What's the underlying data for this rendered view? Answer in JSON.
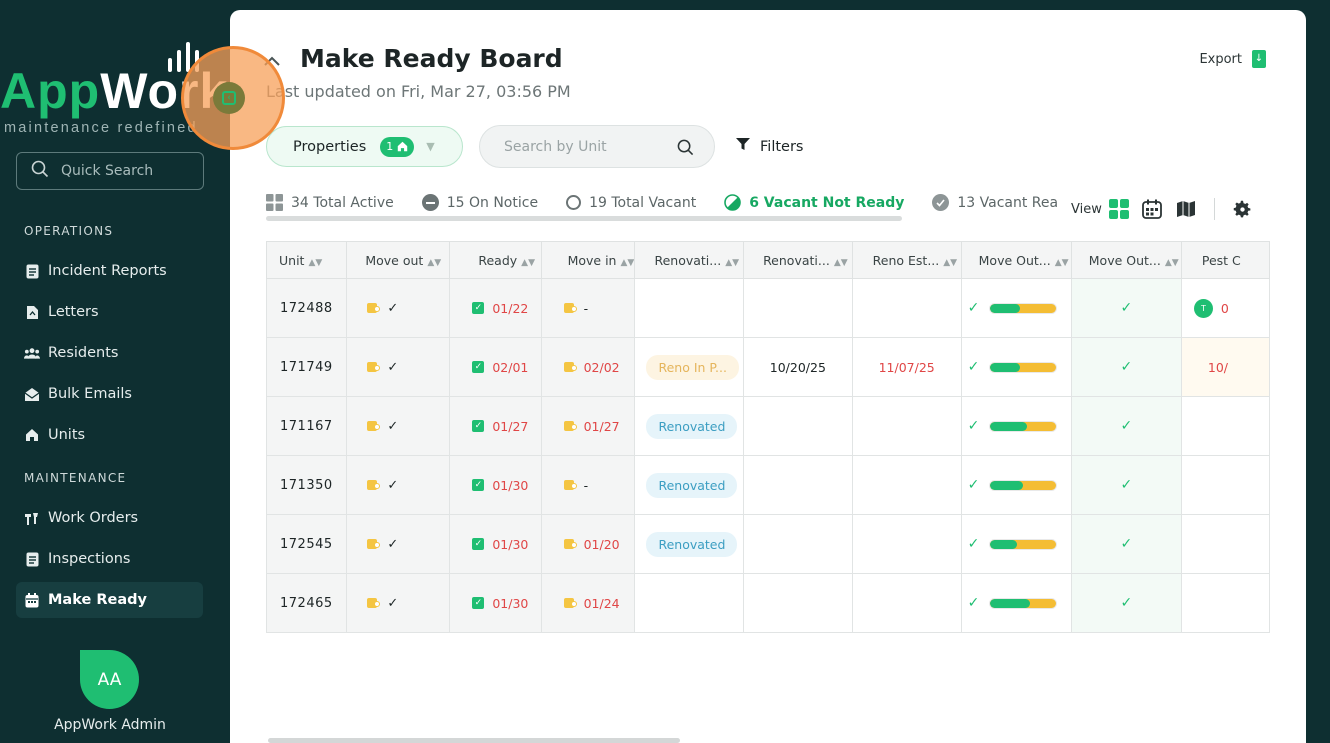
{
  "sidebar": {
    "logo_text_green": "App",
    "logo_text_white": "Work",
    "logo_tagline": "maintenance redefined",
    "quick_search_label": "Quick Search",
    "operations_label": "OPERATIONS",
    "operations_items": [
      "Incident Reports",
      "Letters",
      "Residents",
      "Bulk Emails",
      "Units"
    ],
    "maintenance_label": "MAINTENANCE",
    "maintenance_items": [
      "Work Orders",
      "Inspections",
      "Make Ready"
    ],
    "active_item": "Make Ready",
    "avatar_initials": "AA",
    "user_name": "AppWork Admin"
  },
  "header": {
    "title": "Make Ready Board",
    "last_updated": "Last updated on Fri, Mar 27, 03:56 PM",
    "export_label": "Export"
  },
  "toolbar": {
    "properties_label": "Properties",
    "properties_count": "1",
    "search_placeholder": "Search by Unit",
    "filters_label": "Filters",
    "view_label": "View"
  },
  "stats": [
    {
      "label": "34 Total Active"
    },
    {
      "label": "15 On Notice"
    },
    {
      "label": "19 Total Vacant"
    },
    {
      "label": "6 Vacant Not Ready"
    },
    {
      "label": "13 Vacant Rea"
    }
  ],
  "table": {
    "columns": [
      "Unit",
      "Move out",
      "Ready",
      "Move in",
      "Renovati...",
      "Renovati...",
      "Reno Est...",
      "Move Out...",
      "Move Out...",
      "Pest C"
    ],
    "rows": [
      {
        "unit": "172488",
        "ready": "01/22",
        "move_in": "-",
        "reno_status": "",
        "reno_start": "",
        "reno_est": "",
        "progress": 0.45,
        "pest_initial": "T",
        "pest_date": "0"
      },
      {
        "unit": "171749",
        "ready": "02/01",
        "move_in": "02/02",
        "reno_status": "Reno In P...",
        "reno_start": "10/20/25",
        "reno_est": "11/07/25",
        "progress": 0.45,
        "pest_initial": "",
        "pest_date": "10/"
      },
      {
        "unit": "171167",
        "ready": "01/27",
        "move_in": "01/27",
        "reno_status": "Renovated",
        "reno_start": "",
        "reno_est": "",
        "progress": 0.55,
        "pest_initial": "",
        "pest_date": ""
      },
      {
        "unit": "171350",
        "ready": "01/30",
        "move_in": "-",
        "reno_status": "Renovated",
        "reno_start": "",
        "reno_est": "",
        "progress": 0.5,
        "pest_initial": "",
        "pest_date": ""
      },
      {
        "unit": "172545",
        "ready": "01/30",
        "move_in": "01/20",
        "reno_status": "Renovated",
        "reno_start": "",
        "reno_est": "",
        "progress": 0.4,
        "pest_initial": "",
        "pest_date": ""
      },
      {
        "unit": "172465",
        "ready": "01/30",
        "move_in": "01/24",
        "reno_status": "",
        "reno_start": "",
        "reno_est": "",
        "progress": 0.6,
        "pest_initial": "",
        "pest_date": ""
      }
    ]
  },
  "colors": {
    "brand_green": "#1fbe72",
    "sidebar_bg": "#0e2f31",
    "alert_red": "#e04646",
    "warning_yellow": "#f4bd34"
  }
}
